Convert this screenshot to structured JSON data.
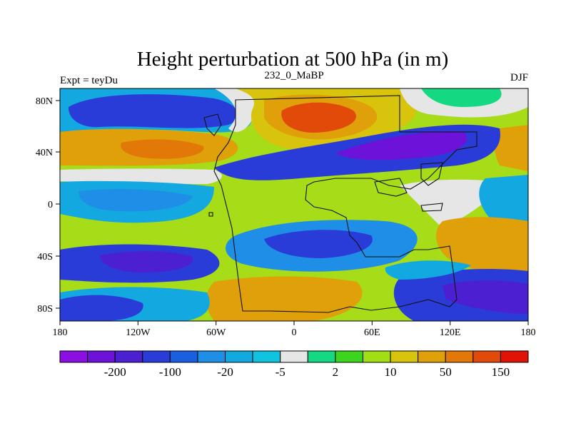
{
  "title": "Height perturbation at 500 hPa (in m)",
  "subtitle_left": "Expt = teyDu",
  "subtitle_center": "232_0_MaBP",
  "subtitle_right": "DJF",
  "x_ticks": [
    "180",
    "120W",
    "60W",
    "0",
    "60E",
    "120E",
    "180"
  ],
  "y_ticks": [
    "80N",
    "40N",
    "0",
    "40S",
    "80S"
  ],
  "colorbar": {
    "colors": [
      "#8a0fe0",
      "#6c12d9",
      "#4c20d0",
      "#2a3cd8",
      "#1a5fe0",
      "#1e8ee6",
      "#12a8e0",
      "#10c4e0",
      "#e6e6e6",
      "#14d882",
      "#3cd41c",
      "#a2de14",
      "#d8c40c",
      "#e0a00a",
      "#e27808",
      "#e24a0a",
      "#e01406"
    ],
    "labels": [
      "-200",
      "-100",
      "-20",
      "-5",
      "2",
      "10",
      "50",
      "150"
    ]
  },
  "chart_data": {
    "type": "heatmap",
    "title": "Height perturbation at 500 hPa (in m)",
    "experiment": "Expt = teyDu",
    "period": "232_0_MaBP",
    "season": "DJF",
    "x_axis": {
      "range": [
        -180,
        180
      ],
      "ticks": [
        "180",
        "120W",
        "60W",
        "0",
        "60E",
        "120E",
        "180"
      ]
    },
    "y_axis": {
      "range": [
        -90,
        90
      ],
      "ticks": [
        "80N",
        "40N",
        "0",
        "40S",
        "80S"
      ]
    },
    "contour_levels": [
      "-200",
      "-100",
      "-20",
      "-5",
      "2",
      "10",
      "50",
      "150"
    ],
    "approx_features": [
      {
        "region": "60N-80N, 30E-90E",
        "value_m": "100 to 150"
      },
      {
        "region": "30N-55N, 60E-150E",
        "value_m": "-200 to -100"
      },
      {
        "region": "35N-50N, 160W-60W",
        "value_m": "50 to 150"
      },
      {
        "region": "65N-80N, 170W-60W",
        "value_m": "-100 to -20"
      },
      {
        "region": "20S-45S, 20W-60E",
        "value_m": "-100 to -20"
      },
      {
        "region": "50S-80S, 60W-30E",
        "value_m": "50 to 150"
      }
    ]
  }
}
